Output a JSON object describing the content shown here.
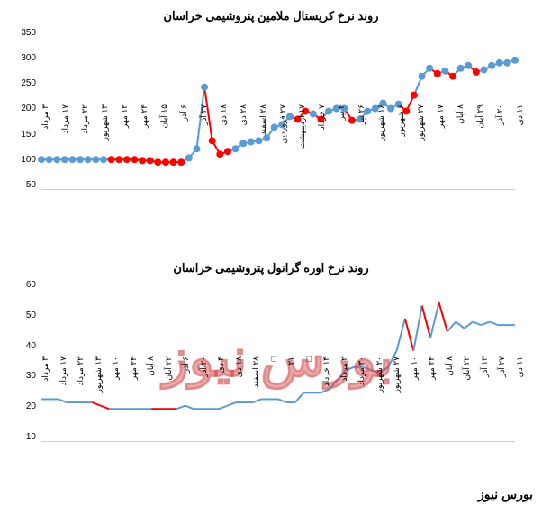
{
  "chart1": {
    "type": "line",
    "title": "روند نرخ کریستال ملامین پتروشیمی خراسان",
    "ylim": [
      50,
      350
    ],
    "yticks": [
      50,
      100,
      150,
      200,
      250,
      300,
      350
    ],
    "title_fontsize": 13,
    "tick_fontsize": 10,
    "blue_line_color": "#5b9bd5",
    "red_line_color": "#ff0000",
    "marker_color": "#5b9bd5",
    "red_marker_color": "#ff0000",
    "marker_size": 4,
    "line_width": 2,
    "background_color": "#ffffff",
    "xlabels": [
      "۳ مرداد",
      "۱۷ مرداد",
      "۲۲ مرداد",
      "۱۳ شهریور",
      "۱۲ مهر",
      "۲۴ مهر",
      "۱۵ آبان",
      "۶ آذر",
      "۲۷ آذر",
      "۱۸ دی",
      "۲۸ دی",
      "۲۸ اسفند",
      "۲۷ فروردین",
      "۱۷ اردیبهشت",
      "۷ خرداد",
      "۴ تیر",
      "۲۶ تیر",
      "۱۶ شهریور",
      "۶ شهریور",
      "۲۷ شهریور",
      "۱۷ مهر",
      "۸ آبان",
      "۲۹ آبان",
      "۲۰ آذر",
      "۱۱ دی"
    ],
    "values": [
      105,
      105,
      105,
      105,
      105,
      105,
      105,
      105,
      105,
      105,
      105,
      105,
      105,
      103,
      103,
      100,
      100,
      100,
      100,
      108,
      125,
      240,
      140,
      115,
      120,
      125,
      135,
      138,
      140,
      145,
      165,
      170,
      185,
      180,
      195,
      190,
      180,
      195,
      200,
      200,
      178,
      180,
      195,
      200,
      210,
      200,
      208,
      195,
      225,
      260,
      275,
      265,
      270,
      260,
      275,
      280,
      268,
      272,
      280,
      285,
      285,
      290
    ],
    "red_indices": [
      9,
      10,
      11,
      12,
      13,
      14,
      15,
      16,
      17,
      18,
      22,
      23,
      24,
      33,
      34,
      36,
      40,
      47,
      48,
      51,
      53,
      56
    ]
  },
  "chart2": {
    "type": "line",
    "title": "روند نرخ اوره گرانول پتروشیمی خراسان",
    "ylim": [
      10,
      60
    ],
    "yticks": [
      10,
      20,
      30,
      40,
      50,
      60
    ],
    "title_fontsize": 13,
    "tick_fontsize": 10,
    "blue_line_color": "#5b9bd5",
    "red_line_color": "#ff0000",
    "line_width": 2,
    "background_color": "#ffffff",
    "xlabels": [
      "۳ مرداد",
      "۱۷ مرداد",
      "۲۲ مرداد",
      "۱۳ شهریور",
      "۱۰ مهر",
      "۲۴ مهر",
      "۸ آبان",
      "۲۲ آبان",
      "۶ آذر",
      "۲۰ آذر",
      "۴ دی",
      "۱۸ دی",
      "۲۸ اسفند",
      "□",
      "۲۱",
      "□",
      "۱۴ خرداد",
      "۲ مرداد",
      "۳۰ مرداد",
      "۲۰ شهریور",
      "۲۷ شهریور",
      "۱۰ مهر",
      "۲۴ مهر",
      "۸ آبان",
      "۲۲ آبان",
      "۱۳ آذر",
      "۲۷ آذر",
      "۱۱ دی"
    ],
    "values": [
      23,
      23,
      23,
      22,
      22,
      22,
      22,
      21,
      20,
      20,
      20,
      20,
      20,
      20,
      20,
      20,
      20,
      21,
      20,
      20,
      20,
      20,
      21,
      22,
      22,
      22,
      23,
      23,
      23,
      22,
      22,
      25,
      25,
      25,
      26,
      29,
      32,
      33,
      33,
      32,
      31,
      33,
      38,
      48,
      38,
      52,
      42,
      53,
      44,
      47,
      45,
      47,
      46,
      47,
      46,
      46,
      46
    ],
    "red_indices": [
      7,
      8,
      13,
      14,
      15,
      16,
      44,
      46,
      48
    ]
  },
  "watermark": {
    "text": "بورس نیوز",
    "color": "#d04545",
    "opacity": 0.5,
    "fontsize": 56
  },
  "footer": {
    "text": "بورس نیوز",
    "color": "#000000",
    "fontsize": 14
  }
}
